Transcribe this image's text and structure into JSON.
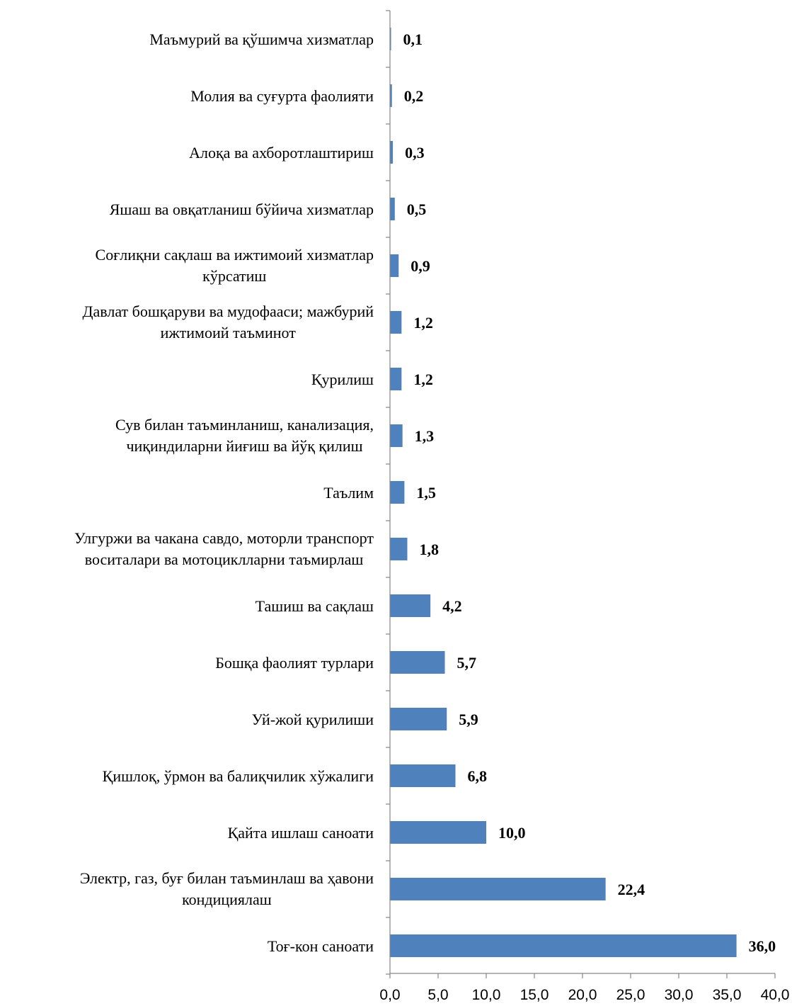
{
  "colors": {
    "bar": "#4f81bd",
    "axis": "#868686",
    "text": "#000000"
  },
  "chart_data": {
    "type": "bar",
    "orientation": "horizontal",
    "categories": [
      [
        "Маъмурий ва қўшимча хизматлар"
      ],
      [
        "Молия ва суғурта фаолияти"
      ],
      [
        "Алоқа ва ахборотлаштириш"
      ],
      [
        "Яшаш ва овқатланиш бўйича хизматлар"
      ],
      [
        "Соғлиқни сақлаш ва ижтимоий хизматлар",
        "кўрсатиш"
      ],
      [
        "Давлат бошқаруви ва мудофааси; мажбурий",
        "ижтимоий таъминот"
      ],
      [
        "Қурилиш"
      ],
      [
        "Сув билан таъминланиш, канализация,",
        "чиқиндиларни йиғиш ва йўқ қилиш"
      ],
      [
        "Таълим"
      ],
      [
        "Улгуржи ва чакана савдо, моторли транспорт",
        "воситалари ва мотоциклларни таъмирлаш"
      ],
      [
        "Ташиш ва сақлаш"
      ],
      [
        "Бошқа фаолият турлари"
      ],
      [
        "Уй-жой қурилиши"
      ],
      [
        "Қишлоқ, ўрмон ва балиқчилик хўжалиги"
      ],
      [
        "Қайта ишлаш саноати"
      ],
      [
        "Электр, газ, буғ билан таъминлаш ва ҳавони",
        "кондициялаш"
      ],
      [
        "Тоғ-кон саноати"
      ]
    ],
    "values": [
      0.1,
      0.2,
      0.3,
      0.5,
      0.9,
      1.2,
      1.2,
      1.3,
      1.5,
      1.8,
      4.2,
      5.7,
      5.9,
      6.8,
      10.0,
      22.4,
      36.0
    ],
    "value_labels": [
      "0,1",
      "0,2",
      "0,3",
      "0,5",
      "0,9",
      "1,2",
      "1,2",
      "1,3",
      "1,5",
      "1,8",
      "4,2",
      "5,7",
      "5,9",
      "6,8",
      "10,0",
      "22,4",
      "36,0"
    ],
    "xlim": [
      0,
      40
    ],
    "x_ticks": [
      0,
      5,
      10,
      15,
      20,
      25,
      30,
      35,
      40
    ],
    "x_tick_labels": [
      "0,0",
      "5,0",
      "10,0",
      "15,0",
      "20,0",
      "25,0",
      "30,0",
      "35,0",
      "40,0"
    ],
    "title": "",
    "xlabel": "",
    "ylabel": "",
    "grid": false,
    "legend": "none"
  }
}
